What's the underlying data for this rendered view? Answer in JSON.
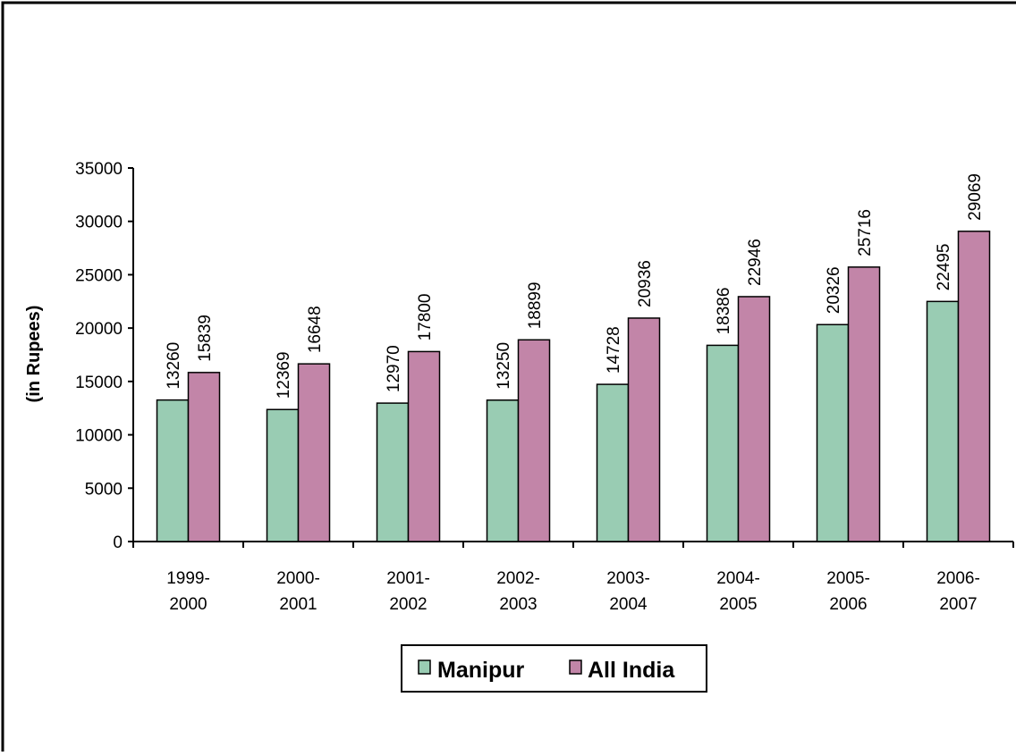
{
  "chart_data": {
    "type": "bar",
    "title": "",
    "xlabel": "",
    "ylabel": "(in Rupees)",
    "ylim": [
      0,
      35000
    ],
    "yticks": [
      0,
      5000,
      10000,
      15000,
      20000,
      25000,
      30000,
      35000
    ],
    "categories": [
      [
        "1999-",
        "2000"
      ],
      [
        "2000-",
        "2001"
      ],
      [
        "2001-",
        "2002"
      ],
      [
        "2002-",
        "2003"
      ],
      [
        "2003-",
        "2004"
      ],
      [
        "2004-",
        "2005"
      ],
      [
        "2005-",
        "2006"
      ],
      [
        "2006-",
        "2007"
      ]
    ],
    "series": [
      {
        "name": "Manipur",
        "color": "#99ccb3",
        "values": [
          13260,
          12369,
          12970,
          13250,
          14728,
          18386,
          20326,
          22495
        ]
      },
      {
        "name": "All India",
        "color": "#c285a8",
        "values": [
          15839,
          16648,
          17800,
          18899,
          20936,
          22946,
          25716,
          29069
        ]
      }
    ],
    "grid": false,
    "legend": "bottom-center"
  }
}
